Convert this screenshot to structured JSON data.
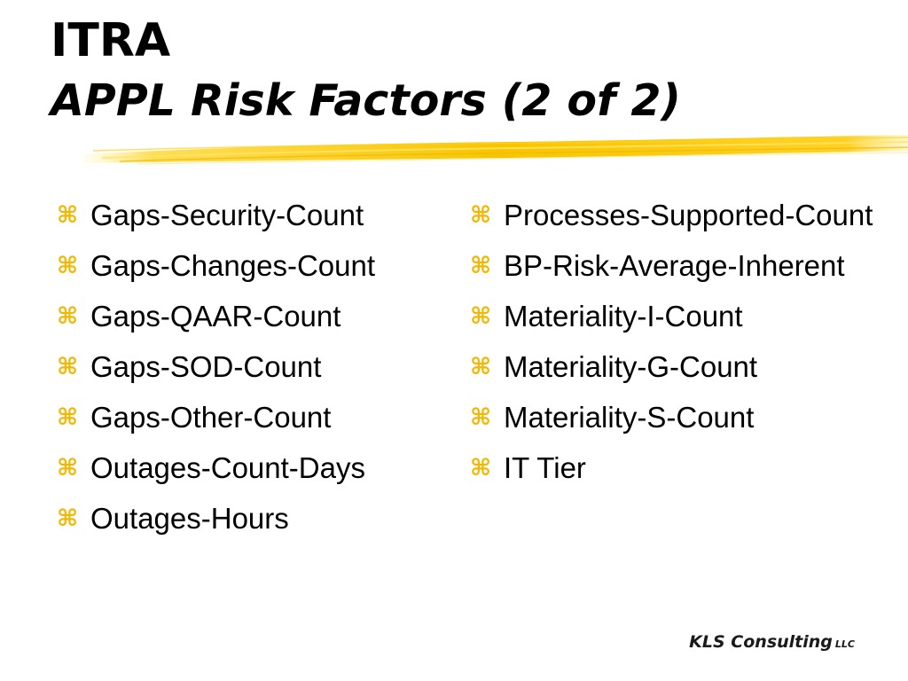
{
  "slide": {
    "title": "ITRA",
    "subtitle": "APPL Risk Factors (2 of 2)",
    "bullet_icon": "command-key-icon",
    "colors": {
      "accent": "#f2b700",
      "text": "#000000",
      "background": "#ffffff"
    },
    "left_items": [
      "Gaps-Security-Count",
      "Gaps-Changes-Count",
      "Gaps-QAAR-Count",
      "Gaps-SOD-Count",
      "Gaps-Other-Count",
      "Outages-Count-Days",
      "Outages-Hours"
    ],
    "right_items": [
      "Processes-Supported-Count",
      "BP-Risk-Average-Inherent",
      "Materiality-I-Count",
      "Materiality-G-Count",
      "Materiality-S-Count",
      "IT Tier"
    ],
    "footer": {
      "company": "KLS Consulting",
      "suffix": "LLC"
    }
  }
}
